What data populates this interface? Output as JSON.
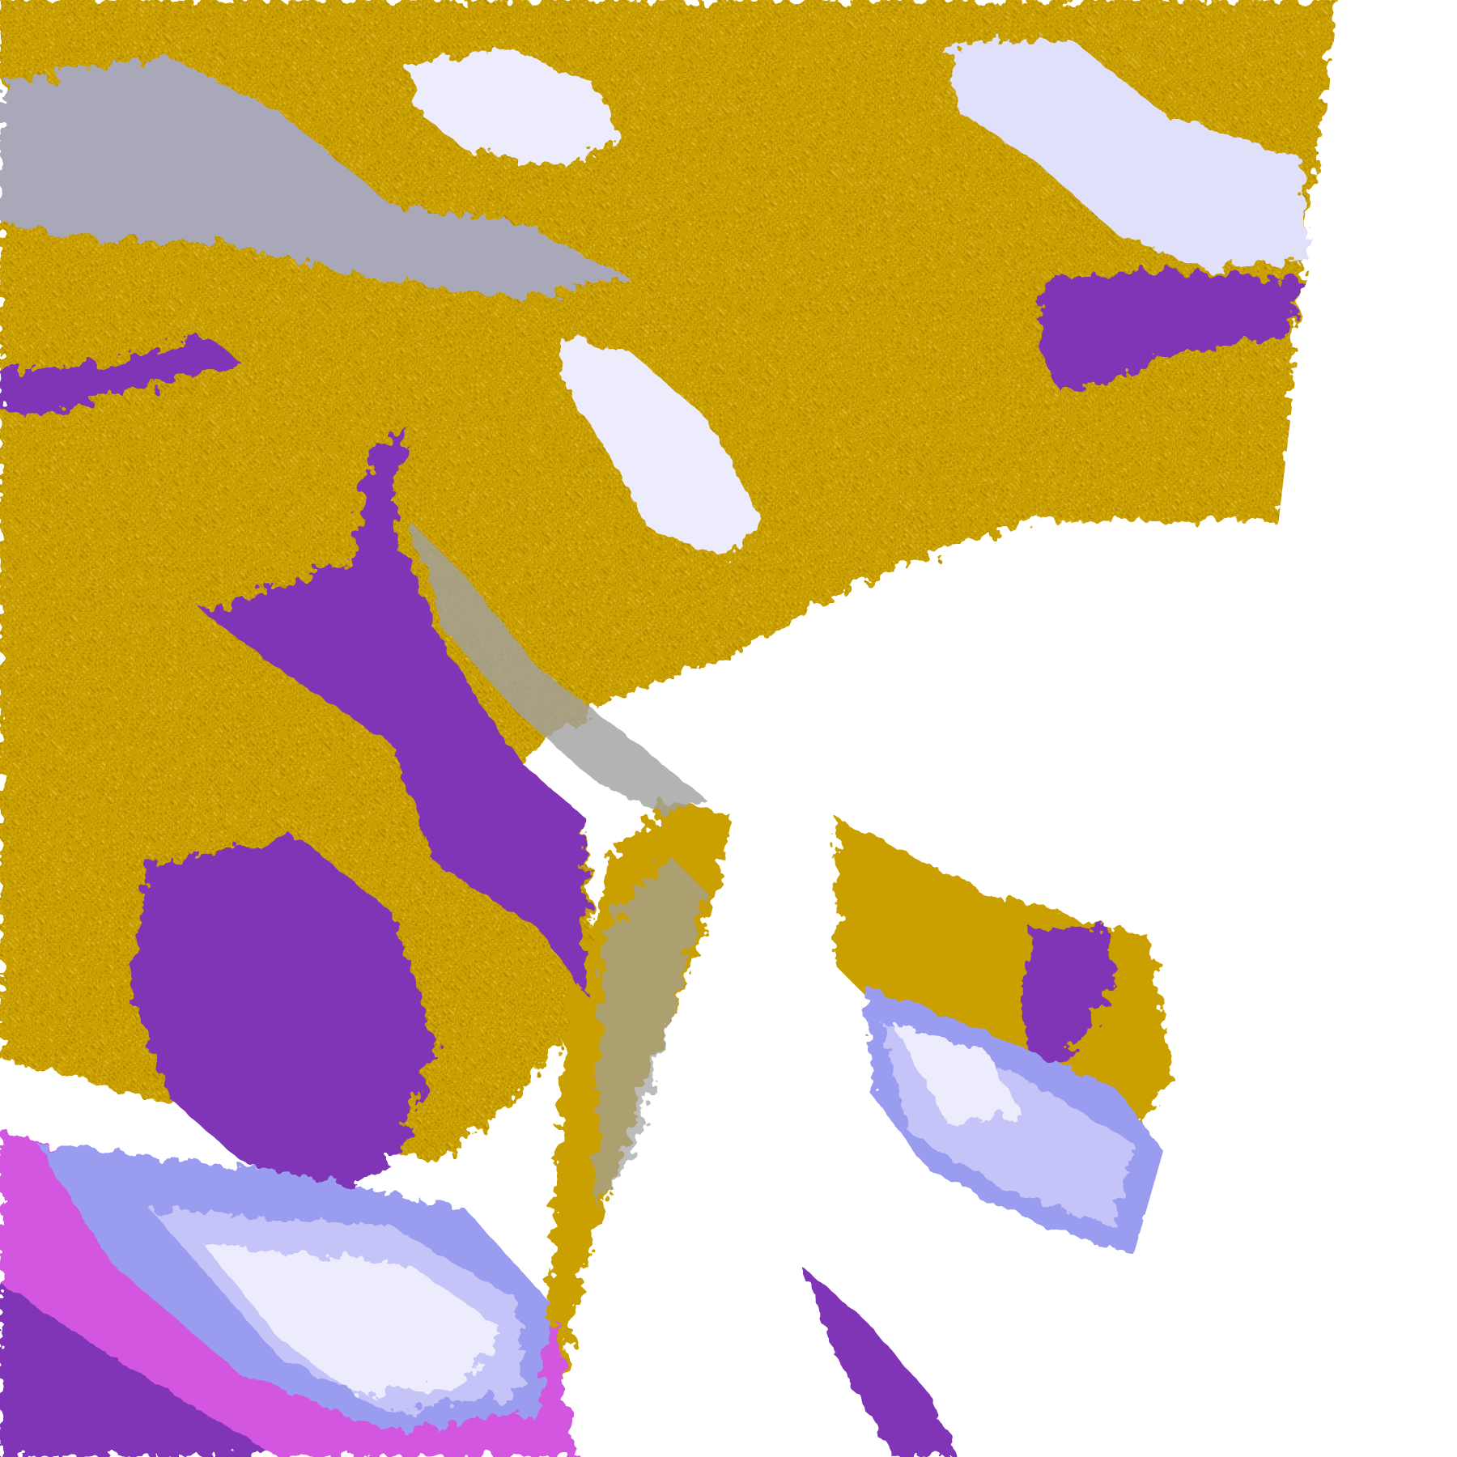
{
  "map": {
    "kind": "satellite cloud-type classification imagery",
    "colors": {
      "background": "#ffffff",
      "gold": "#c9a000",
      "purple": "#7f35b5",
      "lavender_light": "#ececfc",
      "periwinkle": "#c4c4f8",
      "blue_violet": "#9a9cf0",
      "gray": "#a0a0a0",
      "magenta": "#d257e0"
    }
  }
}
